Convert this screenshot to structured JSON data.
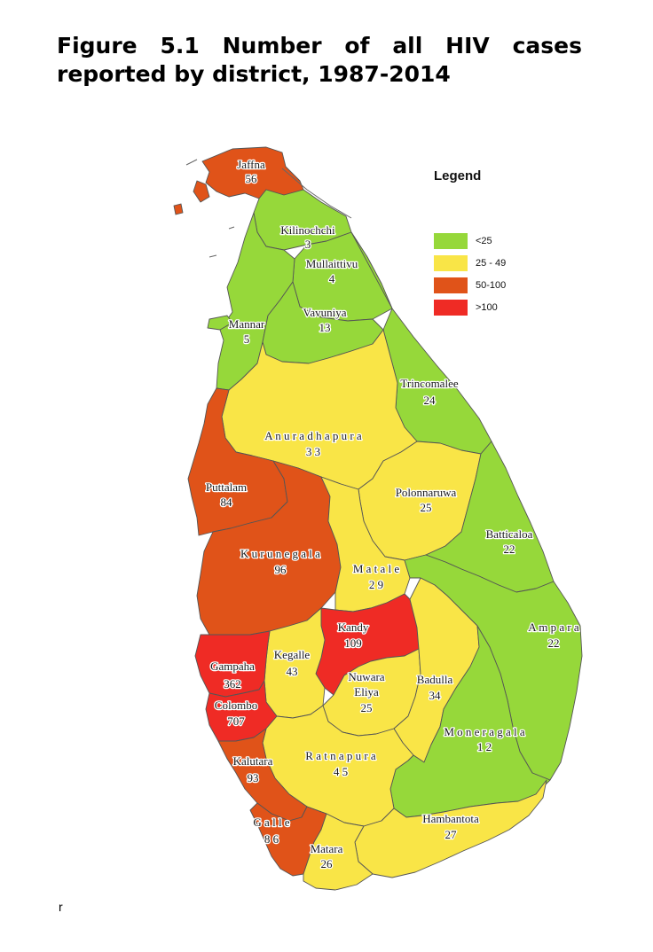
{
  "title": {
    "line1_words": [
      "Figure",
      "5.1",
      "Number",
      "of",
      "all",
      "HIV",
      "cases"
    ],
    "line2": "reported by district, 1987-2014"
  },
  "colors": {
    "lt25": "#96d83a",
    "r25_49": "#f9e547",
    "r50_100": "#e05319",
    "gt100": "#ef2b25",
    "border": "#555555"
  },
  "legend": {
    "title": "Legend",
    "items": [
      {
        "label": "<25",
        "color": "#96d83a"
      },
      {
        "label": "25 - 49",
        "color": "#f9e547"
      },
      {
        "label": "50-100",
        "color": "#e05319"
      },
      {
        "label": ">100",
        "color": ">100"
      }
    ]
  },
  "districts": [
    {
      "id": "jaffna",
      "name": "Jaffna",
      "cases": "56",
      "category": "50-100"
    },
    {
      "id": "kilinochchi",
      "name": "Kilinochchi",
      "cases": "3",
      "category": "<25"
    },
    {
      "id": "mullaittivu",
      "name": "Mullaittivu",
      "cases": "4",
      "category": "<25"
    },
    {
      "id": "mannar",
      "name": "Mannar",
      "cases": "5",
      "category": "<25"
    },
    {
      "id": "vavuniya",
      "name": "Vavuniya",
      "cases": "13",
      "category": "<25"
    },
    {
      "id": "trincomalee",
      "name": "Trincomalee",
      "cases": "24",
      "category": "<25"
    },
    {
      "id": "anuradhapura",
      "name": "A n u r a d h a p u r a",
      "cases": "3 3",
      "category": "25 - 49"
    },
    {
      "id": "polonnaruwa",
      "name": "Polonnaruwa",
      "cases": "25",
      "category": "25 - 49"
    },
    {
      "id": "puttalam",
      "name": "Puttalam",
      "cases": "84",
      "category": "50-100"
    },
    {
      "id": "kurunegala",
      "name": "K u r u n e g a l a",
      "cases": "96",
      "category": "50-100"
    },
    {
      "id": "batticaloa",
      "name": "Batticaloa",
      "cases": "22",
      "category": "<25"
    },
    {
      "id": "matale",
      "name": "M a t a l e",
      "cases": "2 9",
      "category": "25 - 49"
    },
    {
      "id": "ampara",
      "name": "A m p a r a",
      "cases": "22",
      "category": "<25"
    },
    {
      "id": "kandy",
      "name": "Kandy",
      "cases": "109",
      "category": ">100"
    },
    {
      "id": "kegalle",
      "name": "Kegalle",
      "cases": "43",
      "category": "25 - 49"
    },
    {
      "id": "gampaha",
      "name": "Gampaha",
      "cases": "362",
      "category": ">100"
    },
    {
      "id": "nuwara_eliya",
      "name": "Nuwara\nEliya",
      "cases": "25",
      "category": "25 - 49"
    },
    {
      "id": "badulla",
      "name": "Badulla",
      "cases": "34",
      "category": "25 - 49"
    },
    {
      "id": "colombo",
      "name": "Colombo",
      "cases": "707",
      "category": ">100"
    },
    {
      "id": "moneragala",
      "name": "M o n e r a g a l a",
      "cases": "1 2",
      "category": "<25"
    },
    {
      "id": "kalutara",
      "name": "Kalutara",
      "cases": "93",
      "category": "50-100"
    },
    {
      "id": "ratnapura",
      "name": "R a t n a p u r a",
      "cases": "4 5",
      "category": "25 - 49"
    },
    {
      "id": "galle",
      "name": "G a l l e",
      "cases": "8 6",
      "category": "50-100"
    },
    {
      "id": "hambantota",
      "name": "Hambantota",
      "cases": "27",
      "category": "25 - 49"
    },
    {
      "id": "matara",
      "name": "Matara",
      "cases": "26",
      "category": "25 - 49"
    }
  ],
  "page_mark": "r"
}
